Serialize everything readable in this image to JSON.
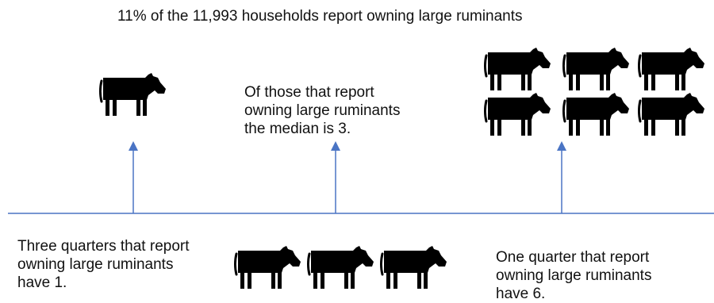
{
  "title": "11% of the 11,993 households report owning large ruminants",
  "captions": {
    "left": "Three quarters that report\nowning large ruminants\nhave 1.",
    "middle": "Of those that report\nowning large ruminants\nthe median is 3.",
    "right": "One quarter that report\nowning large ruminants\nhave 6."
  },
  "icons": {
    "cow": "cow-icon"
  },
  "colors": {
    "axis": "#4a74c4",
    "icon": "#000000",
    "text": "#111111"
  }
}
